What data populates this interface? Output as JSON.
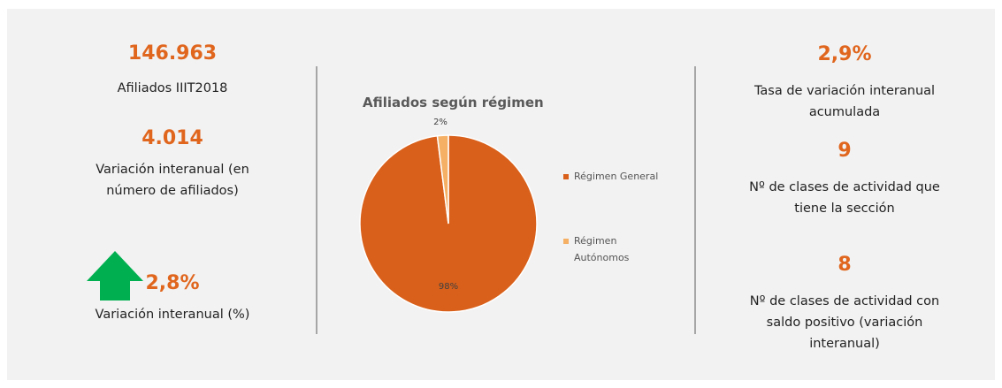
{
  "left": {
    "kpis": [
      {
        "value": "146.963",
        "desc": [
          "Afiliados   IIIT2018"
        ]
      },
      {
        "value": "4.014",
        "desc": [
          "Variación interanual (en",
          "número de afiliados)"
        ]
      },
      {
        "value": "2,8%",
        "desc": [
          "Variación interanual (%)"
        ]
      }
    ]
  },
  "right": {
    "kpis": [
      {
        "value": "2,9%",
        "desc": [
          "Tasa de variación interanual",
          "acumulada"
        ]
      },
      {
        "value": "9",
        "desc": [
          "Nº de clases de actividad que",
          "tiene la sección"
        ]
      },
      {
        "value": "8",
        "desc": [
          "Nº de clases de actividad con",
          "saldo positivo (variación",
          "interanual)"
        ]
      }
    ]
  },
  "chart_data": {
    "type": "pie",
    "title": "Afiliados según régimen",
    "categories": [
      "Régimen General",
      "Régimen Autónomos"
    ],
    "values": [
      98,
      2
    ],
    "value_labels": [
      "98%",
      "2%"
    ],
    "colors": [
      "#d9601a",
      "#f5b066"
    ],
    "legend": "right"
  }
}
